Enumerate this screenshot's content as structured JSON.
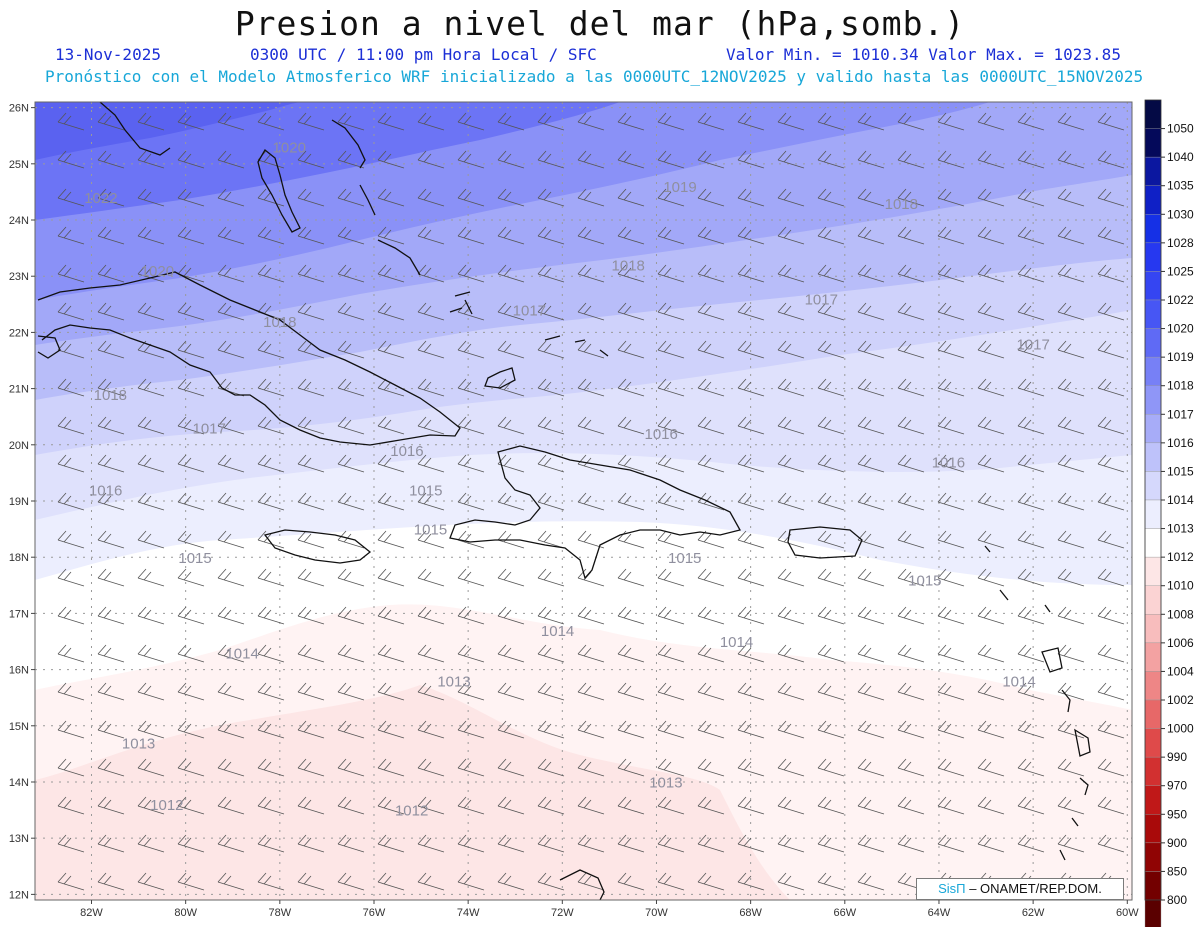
{
  "header": {
    "title": "Presion a nivel del mar (hPa,somb.)",
    "date": "13-Nov-2025",
    "time": "0300 UTC / 11:00 pm Hora Local / SFC",
    "minmax": "Valor Min. = 1010.34  Valor Max. = 1023.85",
    "subtitle": "Pronóstico con el Modelo Atmosferico WRF inicializado a las 0000UTC_12NOV2025 y valido hasta las  0000UTC_15NOV2025"
  },
  "map": {
    "lon_range": [
      -83.2,
      -59.9
    ],
    "lat_range": [
      11.9,
      26.1
    ],
    "lon_ticks": [
      "82W",
      "80W",
      "78W",
      "76W",
      "74W",
      "72W",
      "70W",
      "68W",
      "66W",
      "64W",
      "62W",
      "60W"
    ],
    "lat_ticks": [
      "12N",
      "13N",
      "14N",
      "15N",
      "16N",
      "17N",
      "18N",
      "19N",
      "20N",
      "21N",
      "22N",
      "23N",
      "24N",
      "25N",
      "26N"
    ],
    "contour_labels": [
      {
        "text": "1022",
        "lon": -81.8,
        "lat": 24.3
      },
      {
        "text": "1020",
        "lon": -77.8,
        "lat": 25.2
      },
      {
        "text": "1020",
        "lon": -80.6,
        "lat": 23.0
      },
      {
        "text": "1019",
        "lon": -69.5,
        "lat": 24.5
      },
      {
        "text": "1018",
        "lon": -78.0,
        "lat": 22.1
      },
      {
        "text": "1018",
        "lon": -81.6,
        "lat": 20.8
      },
      {
        "text": "1018",
        "lon": -70.6,
        "lat": 23.1
      },
      {
        "text": "1018",
        "lon": -64.8,
        "lat": 24.2
      },
      {
        "text": "1017",
        "lon": -72.7,
        "lat": 22.3
      },
      {
        "text": "1017",
        "lon": -79.5,
        "lat": 20.2
      },
      {
        "text": "1017",
        "lon": -66.5,
        "lat": 22.5
      },
      {
        "text": "1017",
        "lon": -62.0,
        "lat": 21.7
      },
      {
        "text": "1016",
        "lon": -81.7,
        "lat": 19.1
      },
      {
        "text": "1016",
        "lon": -75.3,
        "lat": 19.8
      },
      {
        "text": "1016",
        "lon": -69.9,
        "lat": 20.1
      },
      {
        "text": "1016",
        "lon": -63.8,
        "lat": 19.6
      },
      {
        "text": "1015",
        "lon": -74.9,
        "lat": 19.1
      },
      {
        "text": "1015",
        "lon": -79.8,
        "lat": 17.9
      },
      {
        "text": "1015",
        "lon": -74.8,
        "lat": 18.4
      },
      {
        "text": "1015",
        "lon": -69.4,
        "lat": 17.9
      },
      {
        "text": "1015",
        "lon": -64.3,
        "lat": 17.5
      },
      {
        "text": "1014",
        "lon": -72.1,
        "lat": 16.6
      },
      {
        "text": "1014",
        "lon": -78.8,
        "lat": 16.2
      },
      {
        "text": "1014",
        "lon": -68.3,
        "lat": 16.4
      },
      {
        "text": "1014",
        "lon": -62.3,
        "lat": 15.7
      },
      {
        "text": "1013",
        "lon": -74.3,
        "lat": 15.7
      },
      {
        "text": "1013",
        "lon": -81.0,
        "lat": 14.6
      },
      {
        "text": "1013",
        "lon": -69.8,
        "lat": 13.9
      },
      {
        "text": "1012",
        "lon": -80.4,
        "lat": 13.5
      },
      {
        "text": "1012",
        "lon": -75.2,
        "lat": 13.4
      }
    ]
  },
  "colorbar": {
    "levels": [
      "1050",
      "1040",
      "1035",
      "1030",
      "1028",
      "1025",
      "1022",
      "1020",
      "1019",
      "1018",
      "1017",
      "1016",
      "1015",
      "1014",
      "1013",
      "1012",
      "1010",
      "1008",
      "1006",
      "1004",
      "1002",
      "1000",
      "990",
      "970",
      "950",
      "900",
      "850",
      "800"
    ],
    "colors": [
      "#04095a",
      "#0b17a0",
      "#0f20c6",
      "#1530e6",
      "#2638f0",
      "#3545f2",
      "#4756f4",
      "#5f6af5",
      "#7780f6",
      "#8f96f7",
      "#a7acf8",
      "#bec2fa",
      "#d5d8fc",
      "#eceefe",
      "#ffffff",
      "#fde6e6",
      "#fbd3d3",
      "#f8bdbd",
      "#f3a2a2",
      "#ee8686",
      "#e76868",
      "#df4a4a",
      "#d23030",
      "#c01818",
      "#a90a0a",
      "#900404",
      "#730000",
      "#5a0000"
    ]
  },
  "credit": {
    "brand": "SisΠ",
    "text": "– ONAMET/REP.DOM."
  }
}
